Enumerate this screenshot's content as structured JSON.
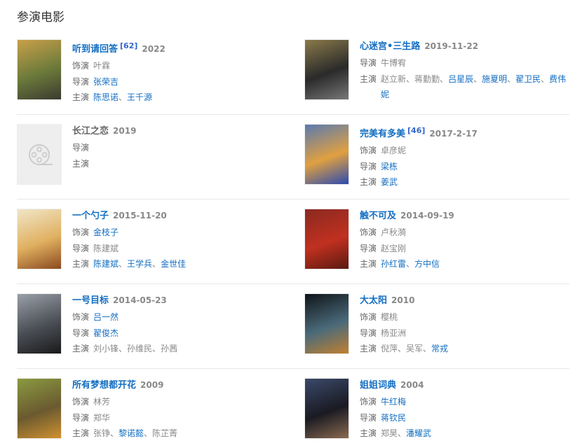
{
  "heading": "参演电影",
  "labels": {
    "role": "饰演",
    "director": "导演",
    "cast": "主演"
  },
  "separator": "、",
  "colors": {
    "link": "#136ec2",
    "text": "#666666",
    "date": "#888888"
  },
  "movies": [
    {
      "title": "听到请回答",
      "linked": true,
      "ref": "[62]",
      "date": "2022",
      "poster": [
        "#c9a04a",
        "#6b7a3a",
        "#3b3a30"
      ],
      "role": [
        {
          "n": "叶霖",
          "l": false
        }
      ],
      "director": [
        {
          "n": "张荣吉",
          "l": true
        }
      ],
      "cast": [
        {
          "n": "陈思诺",
          "l": true
        },
        {
          "n": "王千源",
          "l": true
        }
      ]
    },
    {
      "title": "心迷宫•三生路",
      "linked": true,
      "date": "2019-11-22",
      "poster": [
        "#8a7a4a",
        "#2a2a2a",
        "#777"
      ],
      "director": [
        {
          "n": "牛博宥",
          "l": false
        }
      ],
      "cast": [
        {
          "n": "赵立新",
          "l": false
        },
        {
          "n": "蒋勤勤",
          "l": false
        },
        {
          "n": "吕星辰",
          "l": true
        },
        {
          "n": "施夏明",
          "l": true
        },
        {
          "n": "翟卫民",
          "l": true
        },
        {
          "n": "费伟妮",
          "l": true
        }
      ]
    },
    {
      "title": "长江之恋",
      "linked": false,
      "date": "2019",
      "poster": null,
      "poster_icon": "film-reel-icon",
      "director": [],
      "cast": []
    },
    {
      "title": "完美有多美",
      "linked": true,
      "ref": "[46]",
      "date": "2017-2-17",
      "poster": [
        "#5a7ab0",
        "#e0a040",
        "#2a4ab0"
      ],
      "role": [
        {
          "n": "卓彦妮",
          "l": false
        }
      ],
      "director": [
        {
          "n": "梁栋",
          "l": true
        }
      ],
      "cast": [
        {
          "n": "姜武",
          "l": true
        }
      ]
    },
    {
      "title": "一个勺子",
      "linked": true,
      "date": "2015-11-20",
      "poster": [
        "#f0e6c8",
        "#e0b060",
        "#8a4a20"
      ],
      "role": [
        {
          "n": "金枝子",
          "l": true
        }
      ],
      "director": [
        {
          "n": "陈建斌",
          "l": false
        }
      ],
      "cast": [
        {
          "n": "陈建斌",
          "l": true
        },
        {
          "n": "王学兵",
          "l": true
        },
        {
          "n": "金世佳",
          "l": true
        }
      ]
    },
    {
      "title": "触不可及",
      "linked": true,
      "date": "2014-09-19",
      "poster": [
        "#8a2a20",
        "#c03020",
        "#5a1a10"
      ],
      "role": [
        {
          "n": "卢秋漪",
          "l": false
        }
      ],
      "director": [
        {
          "n": "赵宝刚",
          "l": false
        }
      ],
      "cast": [
        {
          "n": "孙红雷",
          "l": true
        },
        {
          "n": "方中信",
          "l": true
        }
      ]
    },
    {
      "title": "一号目标",
      "linked": true,
      "date": "2014-05-23",
      "poster": [
        "#9aa0a8",
        "#4a4e55",
        "#1a1a1a"
      ],
      "role": [
        {
          "n": "吕一然",
          "l": true
        }
      ],
      "director": [
        {
          "n": "翟俊杰",
          "l": true
        }
      ],
      "cast": [
        {
          "n": "刘小锋",
          "l": false
        },
        {
          "n": "孙维民",
          "l": false
        },
        {
          "n": "孙茜",
          "l": false
        }
      ]
    },
    {
      "title": "大太阳",
      "linked": true,
      "date": "2010",
      "poster": [
        "#101418",
        "#4a6a7a",
        "#c08030"
      ],
      "role": [
        {
          "n": "樱桃",
          "l": false
        }
      ],
      "director": [
        {
          "n": "杨亚洲",
          "l": false
        }
      ],
      "cast": [
        {
          "n": "倪萍",
          "l": false
        },
        {
          "n": "吴军",
          "l": false
        },
        {
          "n": "常戎",
          "l": true
        }
      ]
    },
    {
      "title": "所有梦想都开花",
      "linked": true,
      "date": "2009",
      "poster": [
        "#8a9a40",
        "#6a5a30",
        "#d09030"
      ],
      "role": [
        {
          "n": "林芳",
          "l": false
        }
      ],
      "director": [
        {
          "n": "郑华",
          "l": false
        }
      ],
      "cast": [
        {
          "n": "张铮",
          "l": false
        },
        {
          "n": "黎诺懿",
          "l": true
        },
        {
          "n": "陈芷菁",
          "l": false
        }
      ]
    },
    {
      "title": "姐姐词典",
      "linked": true,
      "date": "2004",
      "poster": [
        "#3a4a6a",
        "#1a1a22",
        "#8a6a50"
      ],
      "role": [
        {
          "n": "牛红梅",
          "l": true
        }
      ],
      "director": [
        {
          "n": "蒋钦民",
          "l": true
        }
      ],
      "cast": [
        {
          "n": "郑昊",
          "l": false
        },
        {
          "n": "潘耀武",
          "l": true
        }
      ]
    }
  ]
}
